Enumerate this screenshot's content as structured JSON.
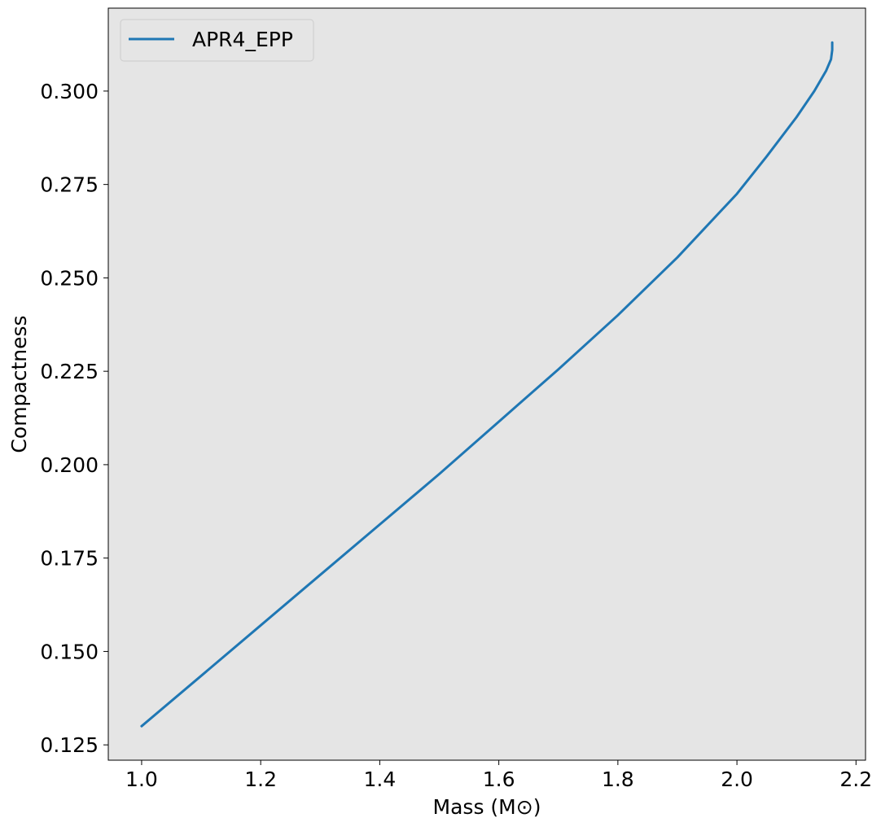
{
  "chart_data": {
    "type": "line",
    "title": "",
    "xlabel": "Mass (M⊙)",
    "ylabel": "Compactness",
    "xlim": [
      0.944,
      2.216
    ],
    "ylim": [
      0.1209,
      0.3222
    ],
    "xticks": [
      1.0,
      1.2,
      1.4,
      1.6,
      1.8,
      2.0,
      2.2
    ],
    "xtick_labels": [
      "1.0",
      "1.2",
      "1.4",
      "1.6",
      "1.8",
      "2.0",
      "2.2"
    ],
    "yticks": [
      0.125,
      0.15,
      0.175,
      0.2,
      0.225,
      0.25,
      0.275,
      0.3
    ],
    "ytick_labels": [
      "0.125",
      "0.150",
      "0.175",
      "0.200",
      "0.225",
      "0.250",
      "0.275",
      "0.300"
    ],
    "grid": false,
    "legend_position": "top-left",
    "plot_background": "#e5e5e5",
    "series": [
      {
        "name": "APR4_EPP",
        "color": "#1f77b4",
        "x": [
          1.0,
          1.1,
          1.2,
          1.3,
          1.4,
          1.5,
          1.6,
          1.7,
          1.8,
          1.9,
          2.0,
          2.05,
          2.1,
          2.13,
          2.15,
          2.158,
          2.16,
          2.16
        ],
        "y": [
          0.13,
          0.1435,
          0.157,
          0.1705,
          0.184,
          0.1975,
          0.2115,
          0.2255,
          0.24,
          0.2555,
          0.2725,
          0.2825,
          0.293,
          0.3,
          0.3055,
          0.3085,
          0.311,
          0.313
        ]
      }
    ]
  }
}
